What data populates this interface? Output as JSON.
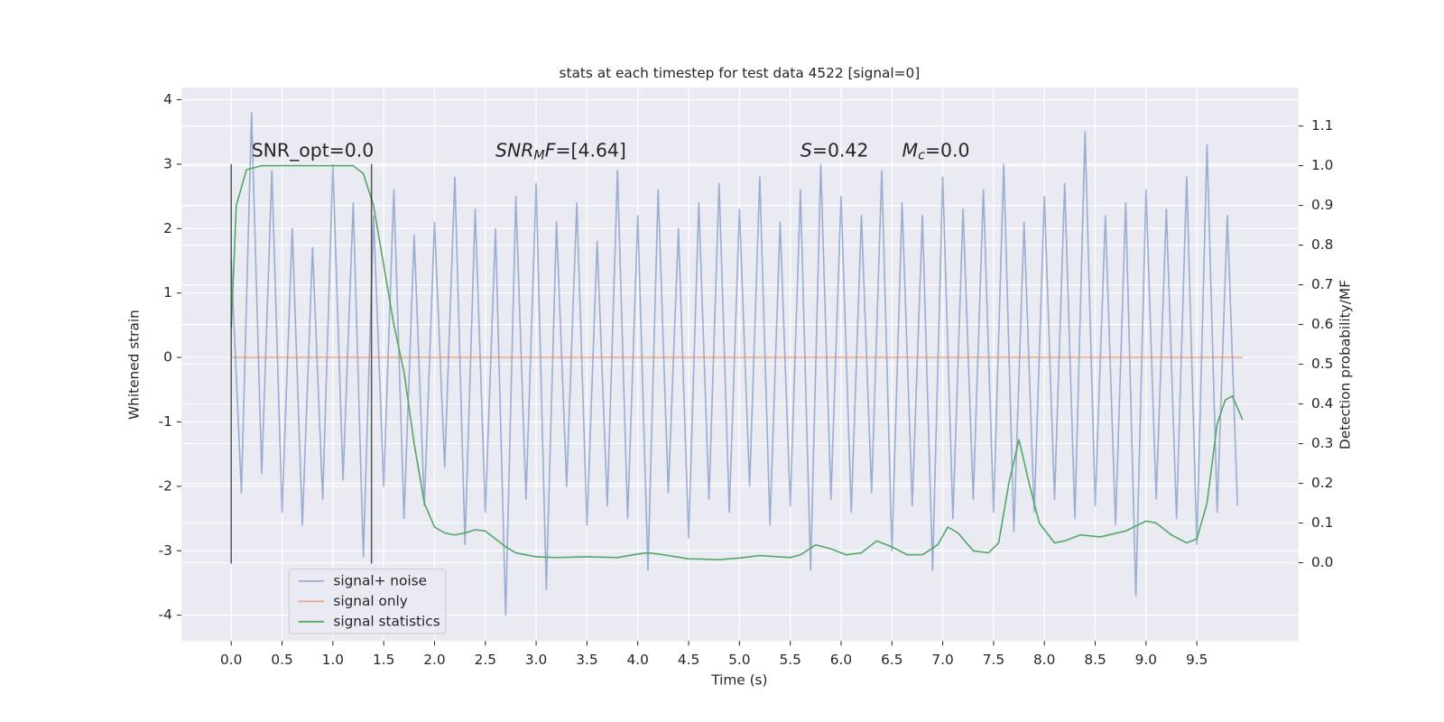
{
  "chart_data": {
    "type": "line",
    "title": "stats at each timestep for test data 4522 [signal=0]",
    "x_label": "Time (s)",
    "y_label": "Whitened strain",
    "y2_label": "Detection probability/MF",
    "xlim": [
      -0.49,
      10.5
    ],
    "ylim": [
      -4.4,
      4.19
    ],
    "y2lim": [
      -0.197,
      1.197
    ],
    "xticks": [
      {
        "value": 0,
        "label": "0.0"
      },
      {
        "value": 0.5,
        "label": "0.5"
      },
      {
        "value": 1,
        "label": "1.0"
      },
      {
        "value": 1.5,
        "label": "1.5"
      },
      {
        "value": 2,
        "label": "2.0"
      },
      {
        "value": 2.5,
        "label": "2.5"
      },
      {
        "value": 3,
        "label": "3.0"
      },
      {
        "value": 3.5,
        "label": "3.5"
      },
      {
        "value": 4,
        "label": "4.0"
      },
      {
        "value": 4.5,
        "label": "4.5"
      },
      {
        "value": 5,
        "label": "5.0"
      },
      {
        "value": 5.5,
        "label": "5.5"
      },
      {
        "value": 6,
        "label": "6.0"
      },
      {
        "value": 6.5,
        "label": "6.5"
      },
      {
        "value": 7,
        "label": "7.0"
      },
      {
        "value": 7.5,
        "label": "7.5"
      },
      {
        "value": 8,
        "label": "8.0"
      },
      {
        "value": 8.5,
        "label": "8.5"
      },
      {
        "value": 9,
        "label": "9.0"
      },
      {
        "value": 9.5,
        "label": "9.5"
      }
    ],
    "yticks": [
      -4,
      -3,
      -2,
      -1,
      0,
      1,
      2,
      3,
      4
    ],
    "y2ticks": [
      {
        "value": 0,
        "label": "0.0"
      },
      {
        "value": 0.1,
        "label": "0.1"
      },
      {
        "value": 0.2,
        "label": "0.2"
      },
      {
        "value": 0.3,
        "label": "0.3"
      },
      {
        "value": 0.4,
        "label": "0.4"
      },
      {
        "value": 0.5,
        "label": "0.5"
      },
      {
        "value": 0.6,
        "label": "0.6"
      },
      {
        "value": 0.7,
        "label": "0.7"
      },
      {
        "value": 0.8,
        "label": "0.8"
      },
      {
        "value": 0.9,
        "label": "0.9"
      },
      {
        "value": 1,
        "label": "1.0"
      },
      {
        "value": 1.1,
        "label": "1.1"
      }
    ],
    "grid": true,
    "legend": "lower left",
    "series": [
      {
        "name": "signal+ noise",
        "color": "#4c72b0",
        "opacity": 0.5,
        "x": [
          0,
          0.1,
          0.2,
          0.3,
          0.4,
          0.5,
          0.6,
          0.7,
          0.8,
          0.9,
          1,
          1.1,
          1.2,
          1.3,
          1.4,
          1.5,
          1.6,
          1.7,
          1.8,
          1.9,
          2,
          2.1,
          2.2,
          2.3,
          2.4,
          2.5,
          2.6,
          2.7,
          2.8,
          2.9,
          3,
          3.1,
          3.2,
          3.3,
          3.4,
          3.5,
          3.6,
          3.7,
          3.8,
          3.9,
          4,
          4.1,
          4.2,
          4.3,
          4.4,
          4.5,
          4.6,
          4.7,
          4.8,
          4.9,
          5,
          5.1,
          5.2,
          5.3,
          5.4,
          5.5,
          5.6,
          5.7,
          5.8,
          5.9,
          6,
          6.1,
          6.2,
          6.3,
          6.4,
          6.5,
          6.6,
          6.7,
          6.8,
          6.9,
          7,
          7.1,
          7.2,
          7.3,
          7.4,
          7.5,
          7.6,
          7.7,
          7.8,
          7.9,
          8,
          8.1,
          8.2,
          8.3,
          8.4,
          8.5,
          8.6,
          8.7,
          8.8,
          8.9,
          9,
          9.1,
          9.2,
          9.3,
          9.4,
          9.5,
          9.6,
          9.7,
          9.8,
          9.9
        ],
        "values": [
          1.5,
          -2.1,
          3.8,
          -1.8,
          2.9,
          -2.4,
          2.0,
          -2.6,
          1.7,
          -2.2,
          3.0,
          -1.9,
          2.4,
          -3.1,
          2.2,
          -2.0,
          2.6,
          -2.5,
          1.9,
          -2.3,
          2.1,
          -1.7,
          2.8,
          -2.9,
          2.3,
          -2.4,
          2.0,
          -4.0,
          2.5,
          -2.2,
          2.7,
          -3.6,
          2.1,
          -2.0,
          2.4,
          -2.6,
          1.8,
          -2.3,
          2.9,
          -2.5,
          2.2,
          -3.3,
          2.6,
          -2.1,
          2.0,
          -2.8,
          2.4,
          -2.2,
          2.7,
          -2.4,
          2.3,
          -2.0,
          2.8,
          -2.6,
          2.1,
          -2.3,
          2.6,
          -3.3,
          3.0,
          -2.2,
          2.5,
          -2.4,
          2.2,
          -2.1,
          2.9,
          -3.0,
          2.4,
          -2.3,
          2.2,
          -3.3,
          2.8,
          -2.5,
          2.3,
          -2.2,
          2.6,
          -2.4,
          3.0,
          -2.7,
          2.1,
          -2.4,
          2.5,
          -2.2,
          2.7,
          -2.5,
          3.5,
          -2.3,
          2.2,
          -2.6,
          2.4,
          -3.7,
          2.6,
          -2.2,
          2.3,
          -2.5,
          2.8,
          -2.9,
          3.3,
          -2.4,
          2.2,
          -2.3
        ]
      },
      {
        "name": "signal only",
        "color": "#dd8452",
        "opacity": 0.6,
        "x": [
          0,
          9.95
        ],
        "values": [
          0,
          0
        ]
      },
      {
        "name": "signal statistics",
        "color": "#55a868",
        "opacity": 1,
        "axis": "y2",
        "x": [
          0,
          0.05,
          0.15,
          0.3,
          1,
          1.2,
          1.3,
          1.4,
          1.5,
          1.6,
          1.7,
          1.8,
          1.9,
          2,
          2.1,
          2.2,
          2.3,
          2.4,
          2.5,
          2.6,
          2.7,
          2.8,
          3,
          3.2,
          3.5,
          3.8,
          4,
          4.1,
          4.2,
          4.5,
          4.8,
          5,
          5.2,
          5.5,
          5.6,
          5.75,
          5.9,
          6.05,
          6.2,
          6.35,
          6.5,
          6.65,
          6.8,
          6.95,
          7.05,
          7.15,
          7.3,
          7.45,
          7.55,
          7.65,
          7.75,
          7.85,
          7.95,
          8.1,
          8.2,
          8.35,
          8.55,
          8.8,
          9,
          9.1,
          9.25,
          9.4,
          9.5,
          9.6,
          9.7,
          9.78,
          9.85,
          9.9,
          9.95
        ],
        "values": [
          0.59,
          0.9,
          0.99,
          1.0,
          1.0,
          1.0,
          0.98,
          0.9,
          0.75,
          0.6,
          0.48,
          0.3,
          0.15,
          0.09,
          0.075,
          0.07,
          0.075,
          0.083,
          0.08,
          0.06,
          0.04,
          0.025,
          0.015,
          0.013,
          0.015,
          0.013,
          0.022,
          0.025,
          0.022,
          0.01,
          0.008,
          0.012,
          0.018,
          0.013,
          0.02,
          0.045,
          0.035,
          0.02,
          0.025,
          0.055,
          0.04,
          0.02,
          0.02,
          0.045,
          0.09,
          0.075,
          0.03,
          0.025,
          0.05,
          0.2,
          0.31,
          0.2,
          0.1,
          0.05,
          0.055,
          0.07,
          0.065,
          0.08,
          0.105,
          0.1,
          0.07,
          0.05,
          0.06,
          0.15,
          0.35,
          0.41,
          0.42,
          0.39,
          0.36
        ]
      }
    ],
    "vlines": {
      "color": "#262626",
      "x": [
        0,
        1.38
      ],
      "ymin": -3.2,
      "ymax": 3
    },
    "annotations": [
      {
        "x": 0.2,
        "y": 3.2,
        "parts": [
          {
            "t": "SNR_opt=0.0",
            "style": "normal"
          }
        ]
      },
      {
        "x": 2.6,
        "y": 3.2,
        "parts": [
          {
            "t": "SNR",
            "style": "italic"
          },
          {
            "t": "M",
            "style": "sub"
          },
          {
            "t": "F",
            "style": "italic"
          },
          {
            "t": "=[4.64]",
            "style": "normal"
          }
        ]
      },
      {
        "x": 5.6,
        "y": 3.2,
        "parts": [
          {
            "t": "S",
            "style": "italic"
          },
          {
            "t": "=0.42",
            "style": "normal"
          }
        ]
      },
      {
        "x": 6.6,
        "y": 3.2,
        "parts": [
          {
            "t": "M",
            "style": "italic"
          },
          {
            "t": "c",
            "style": "sub"
          },
          {
            "t": "=0.0",
            "style": "normal"
          }
        ]
      }
    ]
  }
}
